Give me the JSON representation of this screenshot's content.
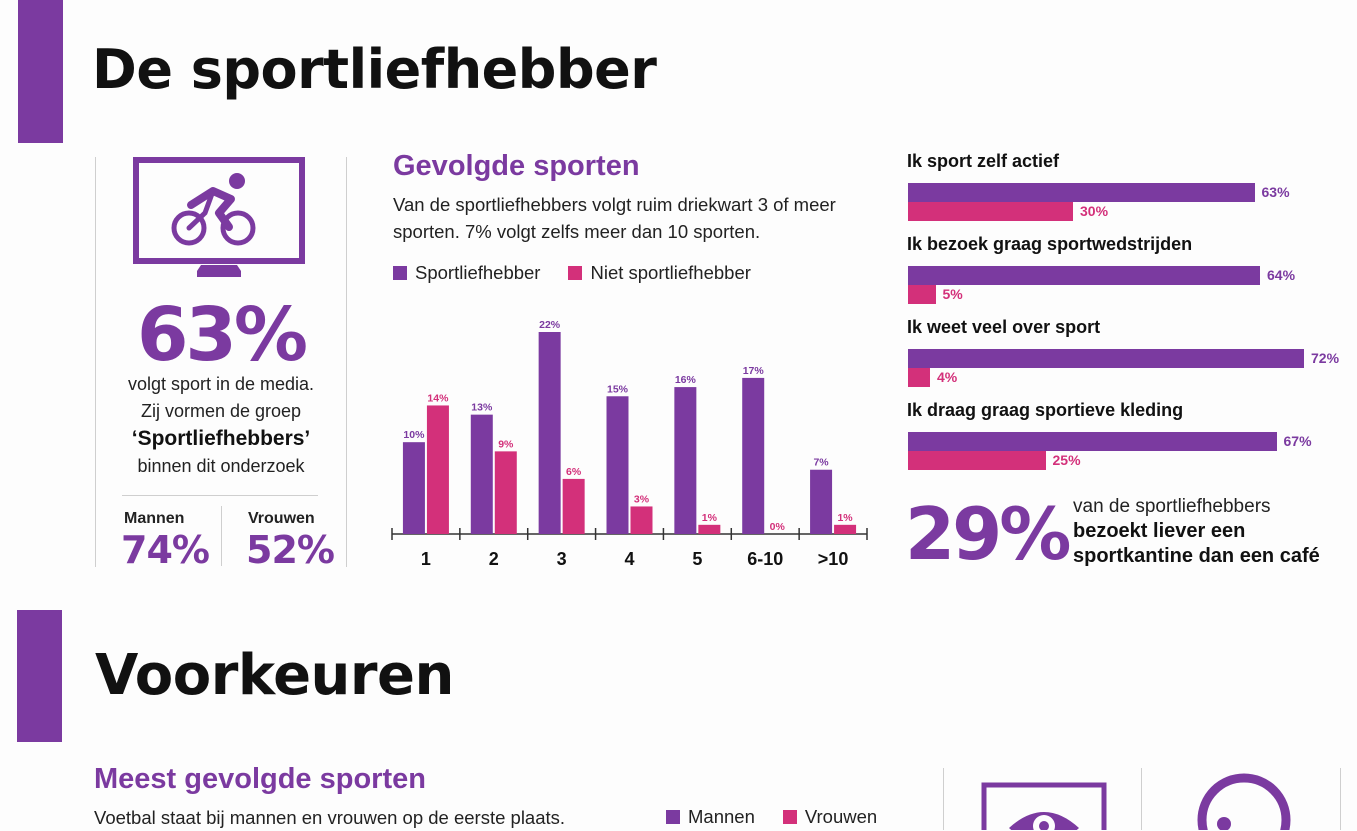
{
  "section1": {
    "title": "De sportliefhebber"
  },
  "stat": {
    "percent": "63%",
    "line1": "volgt sport in de media.",
    "line2": "Zij vormen de groep",
    "group_name": "‘Sportliefhebbers’",
    "line3": "binnen dit onderzoek",
    "men_label": "Mannen",
    "men_value": "74%",
    "women_label": "Vrouwen",
    "women_value": "52%"
  },
  "followed": {
    "title": "Gevolgde sporten",
    "description": "Van de sportliefhebbers volgt ruim driekwart 3 of meer sporten. 7% volgt zelfs meer dan 10 sporten.",
    "legend": [
      "Sportliefhebber",
      "Niet sportliefhebber"
    ]
  },
  "colors": {
    "purple": "#7b3aa0",
    "pink": "#d3307a"
  },
  "chart_data": [
    {
      "type": "bar",
      "title": "Gevolgde sporten",
      "categories": [
        "1",
        "2",
        "3",
        "4",
        "5",
        "6-10",
        ">10"
      ],
      "series": [
        {
          "name": "Sportliefhebber",
          "values": [
            10,
            13,
            22,
            15,
            16,
            17,
            7
          ]
        },
        {
          "name": "Niet sportliefhebber",
          "values": [
            14,
            9,
            6,
            3,
            1,
            0,
            1
          ]
        }
      ],
      "value_suffix": "%",
      "ylim": [
        0,
        22
      ]
    },
    {
      "type": "bar",
      "orientation": "horizontal",
      "categories": [
        "Ik sport zelf actief",
        "Ik bezoek graag sportwedstrijden",
        "Ik weet veel over sport",
        "Ik draag graag sportieve kleding"
      ],
      "series": [
        {
          "name": "Sportliefhebber",
          "values": [
            63,
            64,
            72,
            67
          ]
        },
        {
          "name": "Niet sportliefhebber",
          "values": [
            30,
            5,
            4,
            25
          ]
        }
      ],
      "value_suffix": "%",
      "xlim": [
        0,
        72
      ]
    }
  ],
  "cantine": {
    "percent": "29%",
    "line1": "van de sportliefhebbers",
    "bold1": "bezoekt liever een",
    "bold2": "sportkantine dan een café"
  },
  "section2": {
    "title": "Voorkeuren"
  },
  "most_followed": {
    "title": "Meest gevolgde sporten",
    "description": "Voetbal staat bij mannen en vrouwen op de eerste plaats.",
    "legend": [
      "Mannen",
      "Vrouwen"
    ]
  },
  "icons": [
    "monitor-cyclist-icon",
    "monitor-eye-icon",
    "speech-bubble-icon"
  ]
}
